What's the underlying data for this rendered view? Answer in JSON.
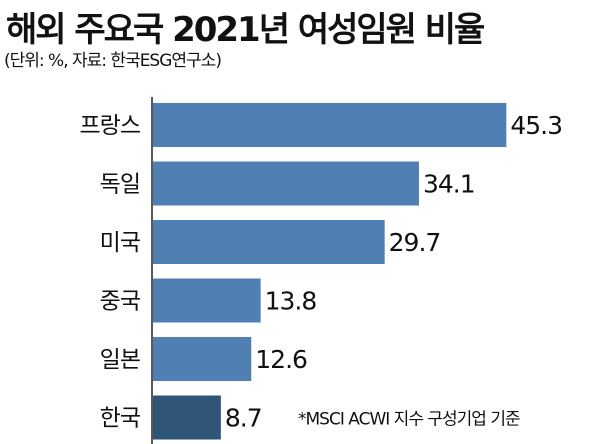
{
  "chart_data": {
    "type": "bar",
    "orientation": "horizontal",
    "title": "해외 주요국 2021년 여성임원 비율",
    "subtitle": "(단위: %, 자료: 한국ESG연구소)",
    "categories": [
      "프랑스",
      "독일",
      "미국",
      "중국",
      "일본",
      "한국"
    ],
    "values": [
      45.3,
      34.1,
      29.7,
      13.8,
      12.6,
      8.7
    ],
    "value_labels": [
      "45.3",
      "34.1",
      "29.7",
      "13.8",
      "12.6",
      "8.7"
    ],
    "annotation": "*MSCI ACWI 지수 구성기업 기준",
    "xlim": [
      0,
      50
    ],
    "grid": false,
    "colors": {
      "bar": "#4f7fb3",
      "highlight": "#2f5577"
    },
    "highlight_category": "한국"
  }
}
